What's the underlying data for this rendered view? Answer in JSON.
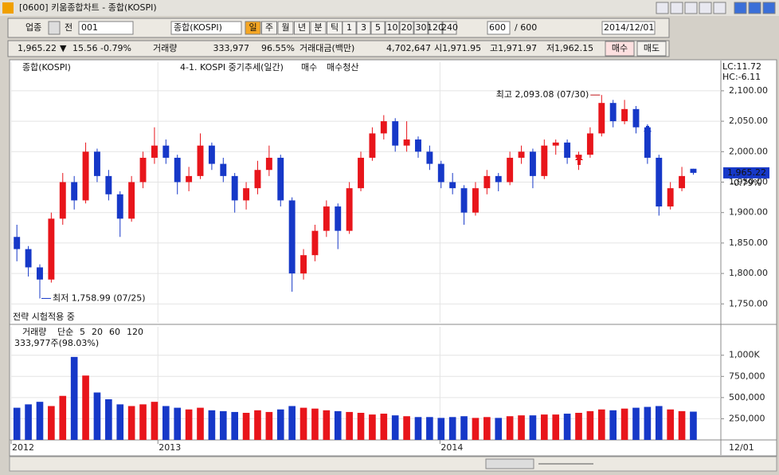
{
  "window": {
    "title": "[0600] 키움종합차트 - 종합(KOSPI)"
  },
  "toolbar": {
    "market": "업종",
    "prev": "전",
    "code": "001",
    "name": "종합(KOSPI)",
    "periods": [
      "일",
      "주",
      "월",
      "년",
      "분",
      "틱"
    ],
    "intervals": [
      "1",
      "3",
      "5",
      "10",
      "20",
      "30",
      "120",
      "240"
    ],
    "count": "600",
    "max": "/ 600",
    "date": "2014/12/01"
  },
  "info": {
    "price": "1,965.22",
    "arrow": "▼",
    "change": "15.56",
    "rate": "-0.79%",
    "volume_label": "거래량",
    "volume": "333,977",
    "volume_ratio": "96.55%",
    "amount_label": "거래대금(백만)",
    "amount": "4,702,647",
    "open": "시1,971.95",
    "high": "고1,971.97",
    "low": "저1,962.15",
    "buy": "매수",
    "sell": "매도"
  },
  "chart_data": [
    {
      "type": "candlestick",
      "title": "종합(KOSPI)",
      "strategy": "4-1. KOSPI 중기추세(일간)",
      "buy_label": "매수",
      "exit_label": "매수청산",
      "note": "전략 시험적용 중",
      "lc": "LC:11.72",
      "hc": "HC:-6.11",
      "max_label": "최고 2,093.08 (07/30)",
      "min_label": "최저 1,758.99 (07/25)",
      "last_label": "1,965.22",
      "last_rate": "-0.79%",
      "open": [
        1860,
        1840,
        1810,
        1790,
        1890,
        1950,
        1920,
        2000,
        1960,
        1930,
        1890,
        1950,
        1990,
        2010,
        1990,
        1950,
        1960,
        2010,
        1980,
        1960,
        1920,
        1940,
        1970,
        1990,
        1920,
        1800,
        1830,
        1870,
        1910,
        1870,
        1940,
        1990,
        2030,
        2050,
        2010,
        2020,
        2000,
        1980,
        1950,
        1940,
        1900,
        1940,
        1960,
        1950,
        1990,
        2000,
        1960,
        2010,
        2015,
        1990,
        1995,
        2030,
        2080,
        2050,
        2070,
        2040,
        1990,
        1910,
        1940,
        1971.95
      ],
      "high": [
        1880,
        1845,
        1815,
        1900,
        1965,
        1960,
        2015,
        2005,
        1970,
        1935,
        1960,
        2000,
        2040,
        2020,
        1995,
        1975,
        2030,
        2015,
        1990,
        1965,
        1950,
        1985,
        2010,
        1995,
        1925,
        1840,
        1880,
        1920,
        1915,
        1950,
        2000,
        2040,
        2060,
        2055,
        2050,
        2025,
        2010,
        1985,
        1965,
        1945,
        1950,
        1970,
        1965,
        2000,
        2010,
        2005,
        2020,
        2020,
        2020,
        2000,
        2040,
        2093.08,
        2085,
        2085,
        2075,
        2045,
        1995,
        1950,
        1975,
        1971.97
      ],
      "low": [
        1820,
        1795,
        1758.99,
        1785,
        1880,
        1905,
        1915,
        1950,
        1920,
        1860,
        1885,
        1940,
        1980,
        1980,
        1930,
        1935,
        1955,
        1970,
        1950,
        1900,
        1905,
        1930,
        1960,
        1910,
        1770,
        1790,
        1820,
        1860,
        1840,
        1865,
        1935,
        1985,
        2020,
        2000,
        2000,
        1990,
        1970,
        1940,
        1930,
        1880,
        1895,
        1930,
        1935,
        1945,
        1980,
        1940,
        1955,
        1995,
        1980,
        1970,
        1990,
        2025,
        2040,
        2045,
        2030,
        1980,
        1895,
        1905,
        1935,
        1962.15
      ],
      "close": [
        1840,
        1810,
        1790,
        1890,
        1950,
        1920,
        2000,
        1960,
        1930,
        1890,
        1950,
        1990,
        2010,
        1990,
        1950,
        1960,
        2010,
        1980,
        1960,
        1920,
        1940,
        1970,
        1990,
        1920,
        1800,
        1830,
        1870,
        1910,
        1870,
        1940,
        1990,
        2030,
        2050,
        2010,
        2020,
        2000,
        1980,
        1950,
        1940,
        1900,
        1940,
        1960,
        1950,
        1990,
        2000,
        1960,
        2010,
        2015,
        1990,
        1995,
        2030,
        2080,
        2050,
        2070,
        2040,
        1990,
        1910,
        1940,
        1960,
        1965.22
      ],
      "up_color": "#e8151b",
      "down_color": "#1638c8",
      "xlim": [
        -0.5,
        61.4
      ],
      "ylim": [
        1719,
        2147
      ],
      "yticks": [
        {
          "value": 1750,
          "label": "1,750.00"
        },
        {
          "value": 1800,
          "label": "1,800.00"
        },
        {
          "value": 1850,
          "label": "1,850.00"
        },
        {
          "value": 1900,
          "label": "1,900.00"
        },
        {
          "value": 1950,
          "label": "1,950.00"
        },
        {
          "value": 2000,
          "label": "2,000.00"
        },
        {
          "value": 2050,
          "label": "2,050.00"
        },
        {
          "value": 2100,
          "label": "2,100.00"
        }
      ],
      "grid": true
    },
    {
      "type": "bar",
      "title": "거래량",
      "ma_label": "단순",
      "ma_periods": [
        "5",
        "20",
        "60",
        "120"
      ],
      "ma_colors": [
        "#9a1fb3",
        "#c8a400",
        "#1a8f3a",
        "#777777"
      ],
      "current": "333,977주(98.03%)",
      "values": [
        380000,
        420000,
        450000,
        400000,
        520000,
        980000,
        760000,
        560000,
        480000,
        420000,
        400000,
        420000,
        450000,
        400000,
        380000,
        360000,
        380000,
        350000,
        340000,
        330000,
        320000,
        350000,
        330000,
        360000,
        400000,
        380000,
        370000,
        350000,
        340000,
        330000,
        320000,
        300000,
        310000,
        290000,
        280000,
        270000,
        270000,
        260000,
        270000,
        280000,
        260000,
        270000,
        260000,
        280000,
        290000,
        290000,
        300000,
        300000,
        310000,
        320000,
        340000,
        360000,
        350000,
        370000,
        380000,
        390000,
        400000,
        360000,
        340000,
        333977
      ],
      "xlim": [
        -0.5,
        61.4
      ],
      "ylim": [
        0,
        1336000
      ],
      "yticks": [
        {
          "value": 250000,
          "label": "250,000"
        },
        {
          "value": 500000,
          "label": "500,000"
        },
        {
          "value": 750000,
          "label": "750,000"
        },
        {
          "value": 1000000,
          "label": "1,000K"
        }
      ],
      "xticks": [
        {
          "value": -0.5,
          "label": "2012"
        },
        {
          "value": 12.3,
          "label": "2013"
        },
        {
          "value": 36.9,
          "label": "2014"
        }
      ],
      "end_label": "12/01",
      "grid": true
    }
  ]
}
